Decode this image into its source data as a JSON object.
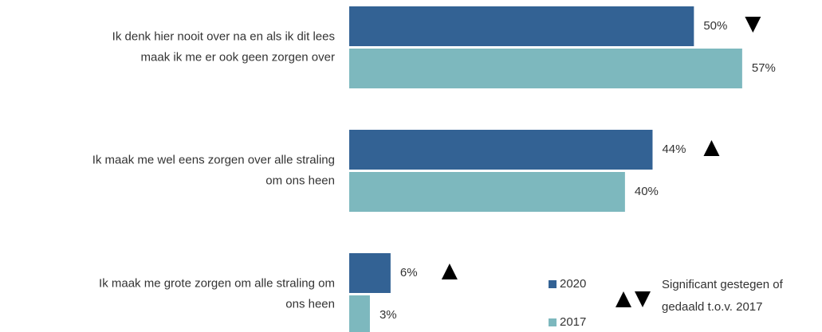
{
  "chart_data": {
    "type": "hbar",
    "categories": [
      "Ik denk hier nooit over na en als ik dit lees\nmaak ik me er ook geen zorgen over",
      "Ik maak me wel eens zorgen over alle straling\nom ons heen",
      "Ik maak me grote zorgen om alle straling om\nons heen"
    ],
    "series": [
      {
        "name": "2020",
        "color": "#336294",
        "values": [
          50,
          44,
          6
        ],
        "value_labels": [
          "50%",
          "44%",
          "6%"
        ],
        "significance": [
          "down",
          "up",
          "up"
        ]
      },
      {
        "name": "2017",
        "color": "#7db8be",
        "values": [
          57,
          40,
          3
        ],
        "value_labels": [
          "57%",
          "40%",
          "3%"
        ]
      }
    ],
    "xlim": [
      0,
      68
    ],
    "legend_note": "Significant gestegen of\ngedaald t.o.v. 2017"
  }
}
